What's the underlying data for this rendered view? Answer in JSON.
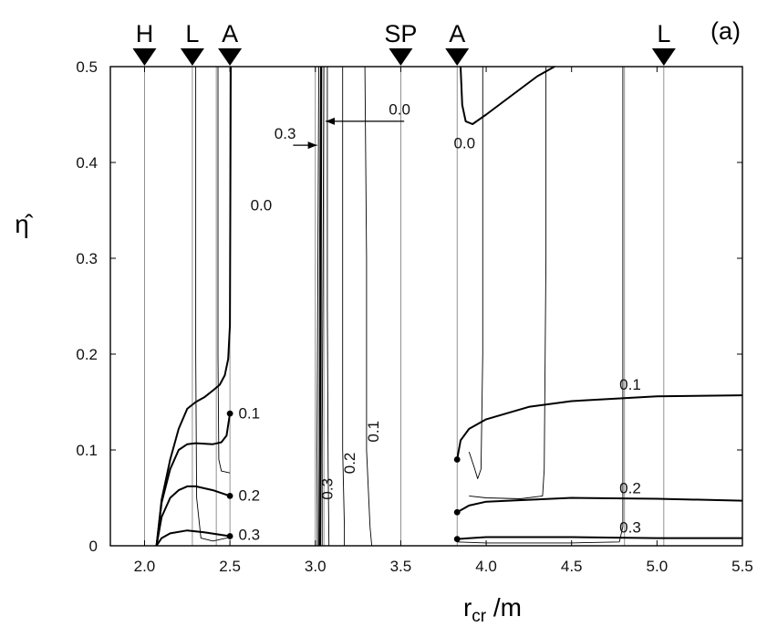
{
  "chart_data": {
    "type": "line",
    "panel_label": "(a)",
    "xlabel": {
      "main": "r",
      "sub": "cr",
      "suffix": " /m"
    },
    "ylabel": "η̂",
    "xlim": [
      1.8,
      5.5
    ],
    "ylim": [
      0,
      0.5
    ],
    "x_ticks": [
      {
        "value": 2.0,
        "label": "2.0"
      },
      {
        "value": 2.5,
        "label": "2.5"
      },
      {
        "value": 3.0,
        "label": "3.0"
      },
      {
        "value": 3.5,
        "label": "3.5"
      },
      {
        "value": 4.0,
        "label": "4.0"
      },
      {
        "value": 4.5,
        "label": "4.5"
      },
      {
        "value": 5.0,
        "label": "5.0"
      },
      {
        "value": 5.5,
        "label": "5.5"
      }
    ],
    "y_ticks": [
      {
        "value": 0,
        "label": "0"
      },
      {
        "value": 0.1,
        "label": "0.1"
      },
      {
        "value": 0.2,
        "label": "0.2"
      },
      {
        "value": 0.3,
        "label": "0.3"
      },
      {
        "value": 0.4,
        "label": "0.4"
      },
      {
        "value": 0.5,
        "label": "0.5"
      }
    ],
    "top_markers": [
      {
        "label": "H",
        "x": 2.0
      },
      {
        "label": "L",
        "x": 2.28
      },
      {
        "label": "A",
        "x": 2.5
      },
      {
        "label": "SP",
        "x": 3.5
      },
      {
        "label": "A",
        "x": 3.83
      },
      {
        "label": "L",
        "x": 5.04
      }
    ],
    "vertical_lines": [
      2.0,
      2.28,
      2.42,
      2.5,
      3.0,
      3.05,
      3.5,
      3.83,
      4.81,
      5.04
    ],
    "series": [
      {
        "label": "0.0",
        "weight": "bold",
        "points": [
          [
            2.07,
            0.0
          ],
          [
            2.1,
            0.048
          ],
          [
            2.15,
            0.09
          ],
          [
            2.2,
            0.122
          ],
          [
            2.25,
            0.143
          ],
          [
            2.3,
            0.15
          ],
          [
            2.35,
            0.155
          ],
          [
            2.4,
            0.162
          ],
          [
            2.44,
            0.168
          ],
          [
            2.47,
            0.178
          ],
          [
            2.49,
            0.195
          ],
          [
            2.5,
            0.23
          ],
          [
            2.505,
            0.5
          ]
        ]
      },
      {
        "label": "0.1",
        "weight": "bold",
        "points": [
          [
            2.07,
            0.0
          ],
          [
            2.1,
            0.045
          ],
          [
            2.15,
            0.08
          ],
          [
            2.2,
            0.1
          ],
          [
            2.25,
            0.106
          ],
          [
            2.3,
            0.107
          ],
          [
            2.4,
            0.106
          ],
          [
            2.45,
            0.108
          ],
          [
            2.48,
            0.115
          ],
          [
            2.5,
            0.138
          ]
        ]
      },
      {
        "label": "0.2",
        "weight": "bold",
        "points": [
          [
            2.07,
            0.0
          ],
          [
            2.1,
            0.03
          ],
          [
            2.15,
            0.05
          ],
          [
            2.2,
            0.058
          ],
          [
            2.25,
            0.062
          ],
          [
            2.3,
            0.062
          ],
          [
            2.4,
            0.058
          ],
          [
            2.5,
            0.052
          ]
        ]
      },
      {
        "label": "0.3",
        "weight": "bold",
        "points": [
          [
            2.07,
            0.0
          ],
          [
            2.1,
            0.008
          ],
          [
            2.15,
            0.013
          ],
          [
            2.25,
            0.016
          ],
          [
            2.35,
            0.014
          ],
          [
            2.5,
            0.01
          ]
        ]
      },
      {
        "label": "",
        "weight": "thin",
        "points": [
          [
            2.3,
            0.5
          ],
          [
            2.3,
            0.4
          ],
          [
            2.3,
            0.2
          ],
          [
            2.305,
            0.05
          ],
          [
            2.33,
            0.008
          ],
          [
            2.4,
            0.005
          ],
          [
            2.48,
            0.008
          ],
          [
            2.5,
            0.01
          ]
        ]
      },
      {
        "label": "",
        "weight": "thin",
        "points": [
          [
            2.43,
            0.5
          ],
          [
            2.43,
            0.2
          ],
          [
            2.435,
            0.09
          ],
          [
            2.45,
            0.078
          ],
          [
            2.5,
            0.076
          ]
        ]
      },
      {
        "label": "",
        "weight": "thin",
        "points": [
          [
            3.02,
            0.5
          ],
          [
            3.015,
            0.3
          ],
          [
            3.01,
            0.1
          ],
          [
            3.012,
            0.0
          ]
        ]
      },
      {
        "label": "",
        "weight": "thin",
        "points": [
          [
            3.03,
            0.5
          ],
          [
            3.025,
            0.3
          ],
          [
            3.022,
            0.1
          ],
          [
            3.02,
            0.0
          ]
        ]
      },
      {
        "label": "",
        "weight": "thin",
        "points": [
          [
            3.05,
            0.5
          ],
          [
            3.045,
            0.3
          ],
          [
            3.04,
            0.1
          ],
          [
            3.04,
            0.0
          ]
        ]
      },
      {
        "label": "",
        "weight": "thin",
        "points": [
          [
            3.07,
            0.5
          ],
          [
            3.07,
            0.25
          ],
          [
            3.075,
            0.08
          ],
          [
            3.08,
            0.0
          ]
        ]
      },
      {
        "label": "",
        "weight": "thin",
        "points": [
          [
            3.16,
            0.5
          ],
          [
            3.16,
            0.3
          ],
          [
            3.16,
            0.1
          ],
          [
            3.17,
            0.02
          ],
          [
            3.17,
            0.0
          ]
        ]
      },
      {
        "label": "",
        "weight": "thin",
        "points": [
          [
            3.29,
            0.5
          ],
          [
            3.3,
            0.3
          ],
          [
            3.3,
            0.1
          ],
          [
            3.32,
            0.02
          ],
          [
            3.33,
            0.0
          ]
        ]
      },
      {
        "label": "",
        "weight": "bold",
        "points": [
          [
            3.035,
            0.5
          ],
          [
            3.032,
            0.3
          ],
          [
            3.03,
            0.1
          ],
          [
            3.028,
            0.0
          ]
        ]
      },
      {
        "label": "0.0",
        "weight": "bold",
        "points": [
          [
            3.85,
            0.5
          ],
          [
            3.86,
            0.46
          ],
          [
            3.88,
            0.443
          ],
          [
            3.92,
            0.44
          ],
          [
            4.0,
            0.45
          ],
          [
            4.15,
            0.47
          ],
          [
            4.3,
            0.49
          ],
          [
            4.4,
            0.5
          ]
        ]
      },
      {
        "label": "",
        "weight": "thin",
        "points": [
          [
            3.98,
            0.5
          ],
          [
            3.98,
            0.2
          ],
          [
            3.97,
            0.08
          ],
          [
            3.95,
            0.07
          ],
          [
            3.93,
            0.082
          ],
          [
            3.9,
            0.098
          ]
        ]
      },
      {
        "label": "0.1",
        "weight": "bold",
        "points": [
          [
            3.83,
            0.09
          ],
          [
            3.85,
            0.11
          ],
          [
            3.9,
            0.122
          ],
          [
            4.0,
            0.132
          ],
          [
            4.25,
            0.145
          ],
          [
            4.5,
            0.151
          ],
          [
            5.0,
            0.156
          ],
          [
            5.5,
            0.157
          ]
        ]
      },
      {
        "label": "",
        "weight": "thin",
        "points": [
          [
            4.35,
            0.5
          ],
          [
            4.35,
            0.3
          ],
          [
            4.34,
            0.08
          ],
          [
            4.33,
            0.052
          ],
          [
            4.2,
            0.049
          ],
          [
            4.0,
            0.05
          ],
          [
            3.9,
            0.052
          ]
        ]
      },
      {
        "label": "0.2",
        "weight": "bold",
        "points": [
          [
            3.83,
            0.035
          ],
          [
            3.9,
            0.042
          ],
          [
            4.0,
            0.046
          ],
          [
            4.5,
            0.05
          ],
          [
            5.0,
            0.049
          ],
          [
            5.5,
            0.047
          ]
        ]
      },
      {
        "label": "",
        "weight": "thin",
        "points": [
          [
            4.8,
            0.5
          ],
          [
            4.8,
            0.3
          ],
          [
            4.8,
            0.02
          ],
          [
            4.78,
            0.004
          ],
          [
            4.5,
            0.003
          ],
          [
            4.0,
            0.003
          ],
          [
            3.83,
            0.004
          ]
        ]
      },
      {
        "label": "0.3",
        "weight": "bold",
        "points": [
          [
            3.83,
            0.007
          ],
          [
            4.0,
            0.009
          ],
          [
            4.5,
            0.009
          ],
          [
            5.0,
            0.008
          ],
          [
            5.5,
            0.008
          ]
        ]
      }
    ],
    "dots": [
      [
        2.5,
        0.138
      ],
      [
        2.5,
        0.052
      ],
      [
        2.5,
        0.01
      ],
      [
        3.83,
        0.09
      ],
      [
        3.83,
        0.035
      ],
      [
        3.83,
        0.007
      ]
    ],
    "curve_labels": [
      {
        "text": "0.0",
        "x": 2.62,
        "y": 0.35,
        "rotate": 0
      },
      {
        "text": "0.1",
        "x": 2.55,
        "y": 0.133,
        "rotate": 0
      },
      {
        "text": "0.2",
        "x": 2.55,
        "y": 0.047,
        "rotate": 0
      },
      {
        "text": "0.3",
        "x": 2.55,
        "y": 0.006,
        "rotate": 0
      },
      {
        "text": "0.3",
        "x": 2.76,
        "y": 0.425,
        "rotate": 0
      },
      {
        "text": "0.0",
        "x": 3.43,
        "y": 0.45,
        "rotate": 0
      },
      {
        "text": "0.0",
        "x": 3.81,
        "y": 0.415,
        "rotate": 0
      },
      {
        "text": "0.3",
        "x": 3.1,
        "y": 0.048,
        "rotate": -90
      },
      {
        "text": "0.2",
        "x": 3.23,
        "y": 0.075,
        "rotate": -90
      },
      {
        "text": "0.1",
        "x": 3.37,
        "y": 0.108,
        "rotate": -90
      },
      {
        "text": "0.1",
        "x": 4.78,
        "y": 0.163,
        "rotate": 0
      },
      {
        "text": "0.2",
        "x": 4.78,
        "y": 0.055,
        "rotate": 0
      },
      {
        "text": "0.3",
        "x": 4.78,
        "y": 0.014,
        "rotate": 0
      }
    ],
    "arrows": [
      {
        "from": [
          2.87,
          0.418
        ],
        "to": [
          3.01,
          0.418
        ]
      },
      {
        "from": [
          3.52,
          0.443
        ],
        "to": [
          3.06,
          0.443
        ]
      }
    ]
  }
}
